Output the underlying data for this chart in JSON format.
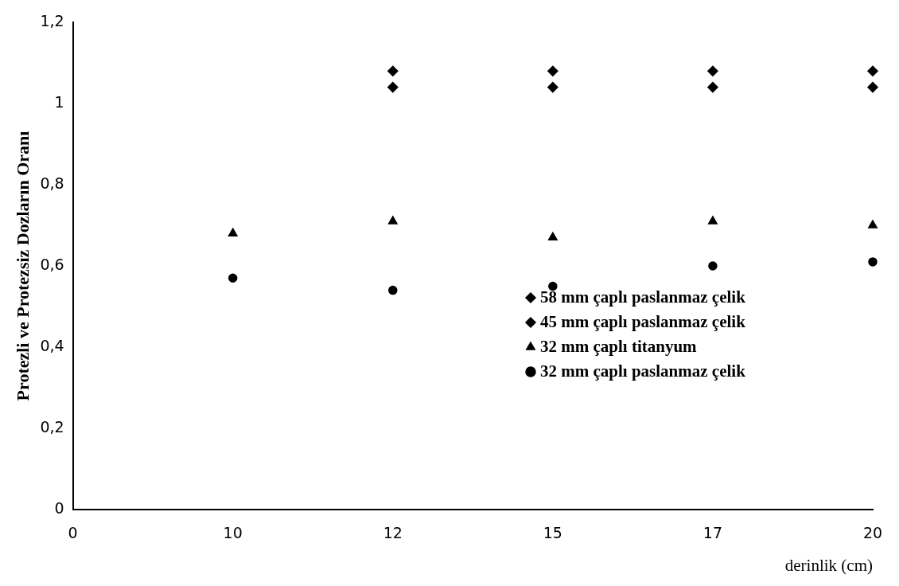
{
  "chart_data": {
    "type": "scatter",
    "xlabel": "derinlik (cm)",
    "ylabel": "Protezli ve Protezsiz Dozların Oranı",
    "categories": [
      "0",
      "10",
      "12",
      "15",
      "17",
      "20"
    ],
    "series": [
      {
        "name": "58 mm çaplı paslanmaz çelik",
        "color": "#000000",
        "marker": "diamond",
        "values": [
          null,
          null,
          1.08,
          1.08,
          1.08,
          1.08
        ]
      },
      {
        "name": "45 mm çaplı paslanmaz çelik",
        "color": "#000000",
        "marker": "diamond",
        "values": [
          null,
          null,
          1.04,
          1.04,
          1.04,
          1.04
        ]
      },
      {
        "name": "32 mm çaplı titanyum",
        "color": "#000000",
        "marker": "triangle",
        "values": [
          null,
          0.68,
          0.71,
          0.67,
          0.71,
          0.7
        ]
      },
      {
        "name": "32 mm çaplı paslanmaz çelik",
        "color": "#000000",
        "marker": "circle",
        "values": [
          null,
          0.57,
          0.54,
          0.55,
          0.6,
          0.61
        ]
      }
    ],
    "ylim": [
      0,
      1.2
    ],
    "yticks": [
      0,
      {
        "value": 0.2,
        "label": "0,2"
      },
      {
        "value": 0.4,
        "label": "0,4"
      },
      {
        "value": 0.6,
        "label": "0,6"
      },
      {
        "value": 0.8,
        "label": "0,8"
      },
      1,
      {
        "value": 1.2,
        "label": "1,2"
      }
    ],
    "grid": false,
    "legend": "right"
  }
}
